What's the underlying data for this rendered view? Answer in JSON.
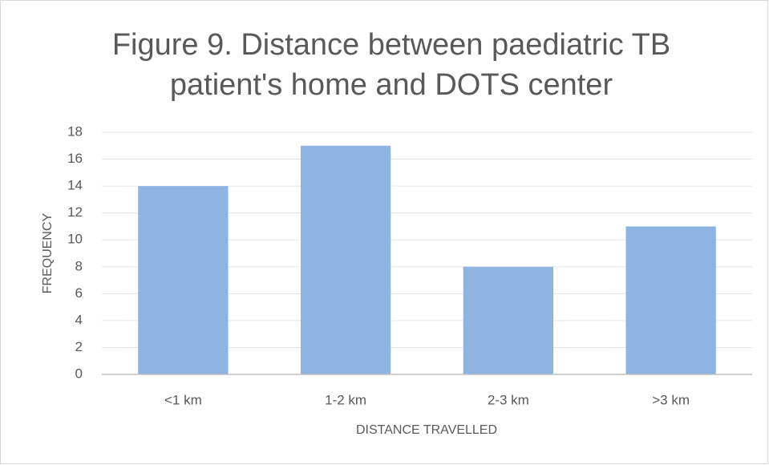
{
  "chart_data": {
    "type": "bar",
    "title": [
      "Figure 9. Distance between paediatric TB",
      "patient's home and DOTS center"
    ],
    "categories": [
      "<1 km",
      "1-2 km",
      "2-3 km",
      ">3 km"
    ],
    "values": [
      14,
      17,
      8,
      11
    ],
    "color": "#8db4e2",
    "x_label": "DISTANCE TRAVELLED",
    "y_label": "FREQUENCY",
    "ylim": [
      0,
      18
    ],
    "yticks": [
      0,
      2,
      4,
      6,
      8,
      10,
      12,
      14,
      16,
      18
    ],
    "grid": true
  }
}
